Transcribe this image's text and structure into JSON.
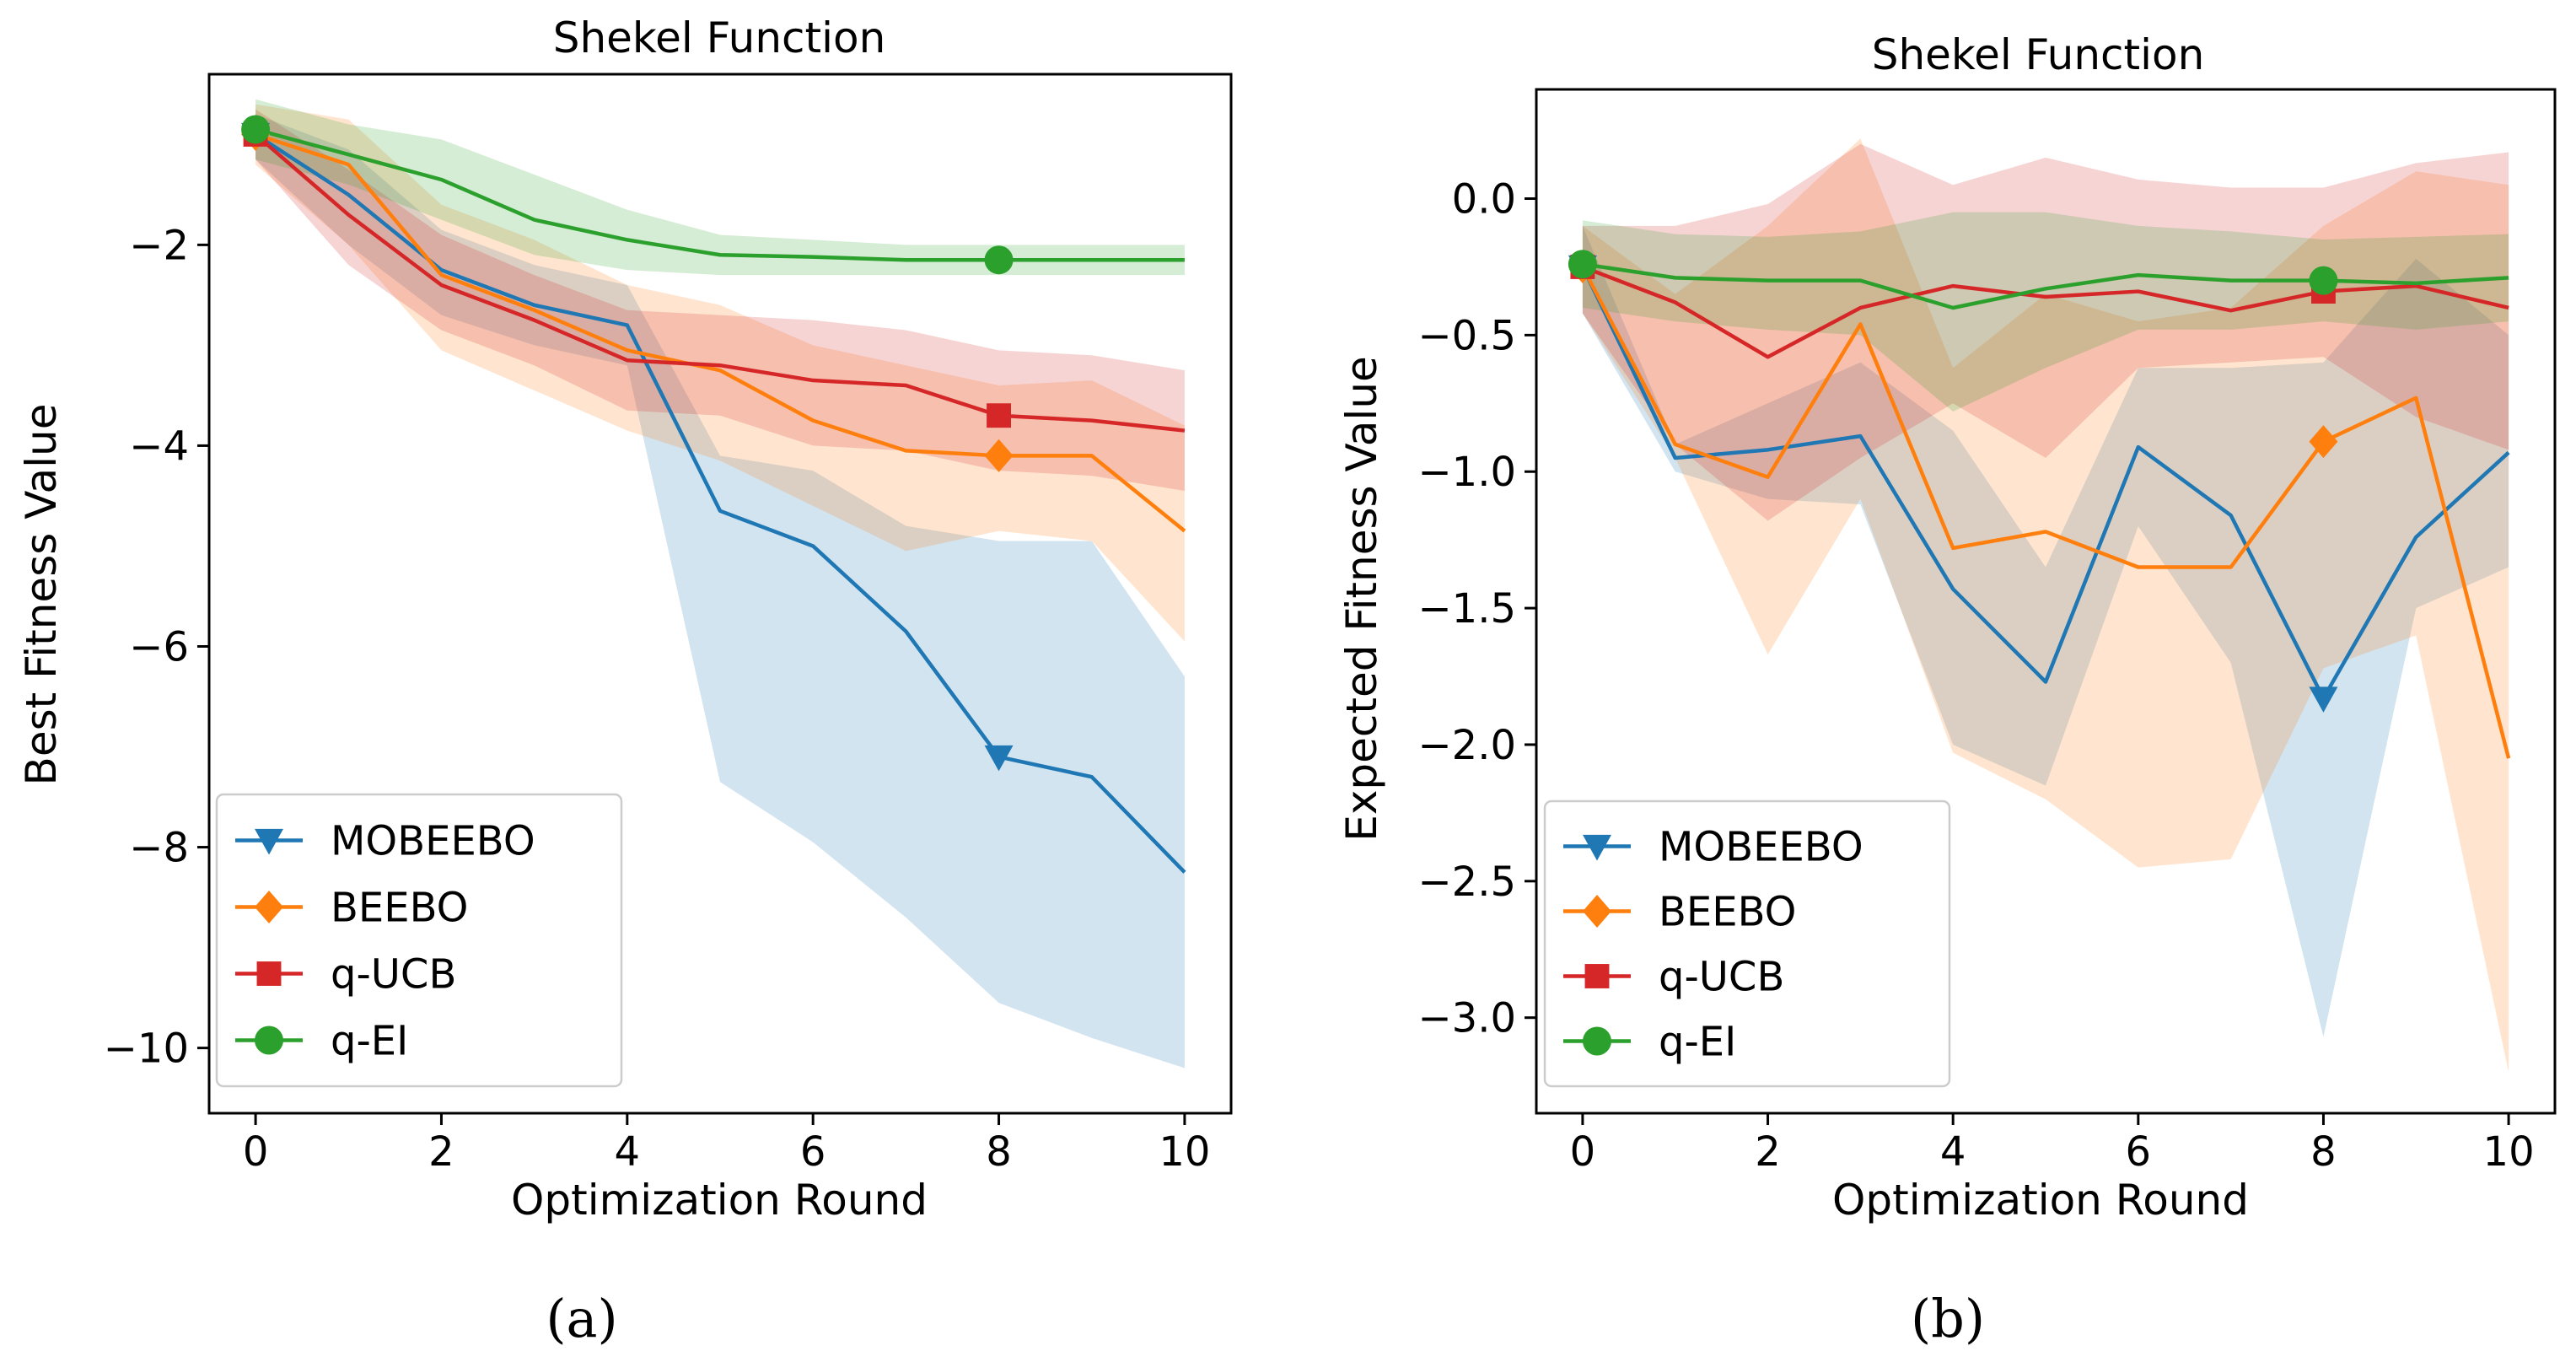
{
  "figure": {
    "subcaptions": [
      "(a)",
      "(b)"
    ],
    "legend_entries": [
      "MOBEEBO",
      "BEEBO",
      "q-UCB",
      "q-EI"
    ]
  },
  "colors": {
    "MOBEEBO": "#1f77b4",
    "BEEBO": "#ff7f0e",
    "q-UCB": "#d62728",
    "q-EI": "#2ca02c"
  },
  "chart_data": [
    {
      "type": "line",
      "title": "Shekel Function",
      "xlabel": "Optimization Round",
      "ylabel": "Best Fitness Value",
      "xlim": [
        -0.5,
        10.5
      ],
      "ylim": [
        -10.65,
        -0.3
      ],
      "xticks": [
        0,
        2,
        4,
        6,
        8,
        10
      ],
      "xtick_labels": [
        "0",
        "2",
        "4",
        "6",
        "8",
        "10"
      ],
      "yticks": [
        -2,
        -4,
        -6,
        -8,
        -10
      ],
      "ytick_labels": [
        "−2",
        "−4",
        "−6",
        "−8",
        "−10"
      ],
      "legend_position": "lower-left",
      "grid": false,
      "x": [
        0,
        1,
        2,
        3,
        4,
        5,
        6,
        7,
        8,
        9,
        10
      ],
      "marker_indices": [
        0,
        8
      ],
      "series": [
        {
          "name": "MOBEEBO",
          "marker": "triangle-down",
          "values": [
            -0.9,
            -1.5,
            -2.25,
            -2.6,
            -2.8,
            -4.65,
            -5.0,
            -5.85,
            -7.1,
            -7.3,
            -8.25
          ],
          "lower": [
            -1.15,
            -2.0,
            -2.7,
            -3.0,
            -3.2,
            -7.35,
            -7.95,
            -8.7,
            -9.55,
            -9.9,
            -10.2
          ],
          "upper": [
            -0.7,
            -1.05,
            -1.85,
            -2.2,
            -2.4,
            -4.1,
            -4.25,
            -4.8,
            -4.95,
            -4.95,
            -6.3
          ]
        },
        {
          "name": "BEEBO",
          "marker": "diamond",
          "values": [
            -0.9,
            -1.2,
            -2.3,
            -2.65,
            -3.05,
            -3.25,
            -3.75,
            -4.05,
            -4.1,
            -4.1,
            -4.85
          ],
          "lower": [
            -1.2,
            -2.0,
            -3.05,
            -3.45,
            -3.85,
            -4.15,
            -4.6,
            -5.05,
            -4.85,
            -4.95,
            -5.95
          ],
          "upper": [
            -0.6,
            -0.75,
            -1.6,
            -1.95,
            -2.4,
            -2.6,
            -3.0,
            -3.2,
            -3.4,
            -3.35,
            -3.8
          ]
        },
        {
          "name": "q-UCB",
          "marker": "square",
          "values": [
            -0.9,
            -1.7,
            -2.4,
            -2.75,
            -3.15,
            -3.2,
            -3.35,
            -3.4,
            -3.7,
            -3.75,
            -3.85
          ],
          "lower": [
            -1.15,
            -2.2,
            -2.85,
            -3.2,
            -3.65,
            -3.7,
            -4.0,
            -4.05,
            -4.25,
            -4.3,
            -4.45
          ],
          "upper": [
            -0.65,
            -1.25,
            -1.9,
            -2.3,
            -2.65,
            -2.7,
            -2.75,
            -2.85,
            -3.05,
            -3.1,
            -3.25
          ]
        },
        {
          "name": "q-EI",
          "marker": "circle",
          "values": [
            -0.85,
            -1.1,
            -1.35,
            -1.75,
            -1.95,
            -2.1,
            -2.12,
            -2.15,
            -2.15,
            -2.15,
            -2.15
          ],
          "lower": [
            -1.15,
            -1.4,
            -1.75,
            -2.1,
            -2.25,
            -2.3,
            -2.3,
            -2.3,
            -2.3,
            -2.3,
            -2.3
          ],
          "upper": [
            -0.55,
            -0.8,
            -0.95,
            -1.3,
            -1.65,
            -1.9,
            -1.95,
            -2.0,
            -2.0,
            -2.0,
            -2.0
          ]
        }
      ]
    },
    {
      "type": "line",
      "title": "Shekel Function",
      "xlabel": "Optimization Round",
      "ylabel": "Expected Fitness Value",
      "xlim": [
        -0.5,
        10.5
      ],
      "ylim": [
        -3.35,
        0.4
      ],
      "xticks": [
        0,
        2,
        4,
        6,
        8,
        10
      ],
      "xtick_labels": [
        "0",
        "2",
        "4",
        "6",
        "8",
        "10"
      ],
      "yticks": [
        0.0,
        -0.5,
        -1.0,
        -1.5,
        -2.0,
        -2.5,
        -3.0
      ],
      "ytick_labels": [
        "0.0",
        "−0.5",
        "−1.0",
        "−1.5",
        "−2.0",
        "−2.5",
        "−3.0"
      ],
      "legend_position": "lower-left",
      "grid": false,
      "x": [
        0,
        1,
        2,
        3,
        4,
        5,
        6,
        7,
        8,
        9,
        10
      ],
      "marker_indices": [
        0,
        8
      ],
      "series": [
        {
          "name": "MOBEEBO",
          "marker": "triangle-down",
          "values": [
            -0.25,
            -0.95,
            -0.92,
            -0.87,
            -1.43,
            -1.77,
            -0.91,
            -1.16,
            -1.83,
            -1.24,
            -0.93
          ],
          "lower": [
            -0.42,
            -1.0,
            -1.1,
            -1.12,
            -2.0,
            -2.15,
            -1.2,
            -1.7,
            -3.07,
            -1.5,
            -1.35
          ],
          "upper": [
            -0.1,
            -0.9,
            -0.75,
            -0.6,
            -0.85,
            -1.35,
            -0.62,
            -0.62,
            -0.6,
            -0.22,
            -0.5
          ]
        },
        {
          "name": "BEEBO",
          "marker": "diamond",
          "values": [
            -0.25,
            -0.9,
            -1.02,
            -0.46,
            -1.28,
            -1.22,
            -1.35,
            -1.35,
            -0.89,
            -0.73,
            -2.05
          ],
          "lower": [
            -0.42,
            -0.95,
            -1.67,
            -1.1,
            -2.03,
            -2.2,
            -2.45,
            -2.42,
            -1.72,
            -1.6,
            -3.2
          ],
          "upper": [
            -0.1,
            -0.35,
            -0.1,
            0.22,
            -0.62,
            -0.35,
            -0.45,
            -0.4,
            -0.1,
            0.1,
            0.05
          ]
        },
        {
          "name": "q-UCB",
          "marker": "square",
          "values": [
            -0.25,
            -0.38,
            -0.58,
            -0.4,
            -0.32,
            -0.36,
            -0.34,
            -0.41,
            -0.34,
            -0.32,
            -0.4
          ],
          "lower": [
            -0.42,
            -0.9,
            -1.18,
            -0.95,
            -0.75,
            -0.95,
            -0.62,
            -0.6,
            -0.58,
            -0.8,
            -0.92
          ],
          "upper": [
            -0.1,
            -0.1,
            -0.02,
            0.2,
            0.05,
            0.15,
            0.07,
            0.04,
            0.04,
            0.13,
            0.17
          ]
        },
        {
          "name": "q-EI",
          "marker": "circle",
          "values": [
            -0.24,
            -0.29,
            -0.3,
            -0.3,
            -0.4,
            -0.33,
            -0.28,
            -0.3,
            -0.3,
            -0.31,
            -0.29
          ],
          "lower": [
            -0.4,
            -0.45,
            -0.48,
            -0.5,
            -0.78,
            -0.62,
            -0.48,
            -0.48,
            -0.45,
            -0.48,
            -0.45
          ],
          "upper": [
            -0.08,
            -0.13,
            -0.14,
            -0.12,
            -0.05,
            -0.05,
            -0.1,
            -0.12,
            -0.15,
            -0.14,
            -0.13
          ]
        }
      ]
    }
  ]
}
